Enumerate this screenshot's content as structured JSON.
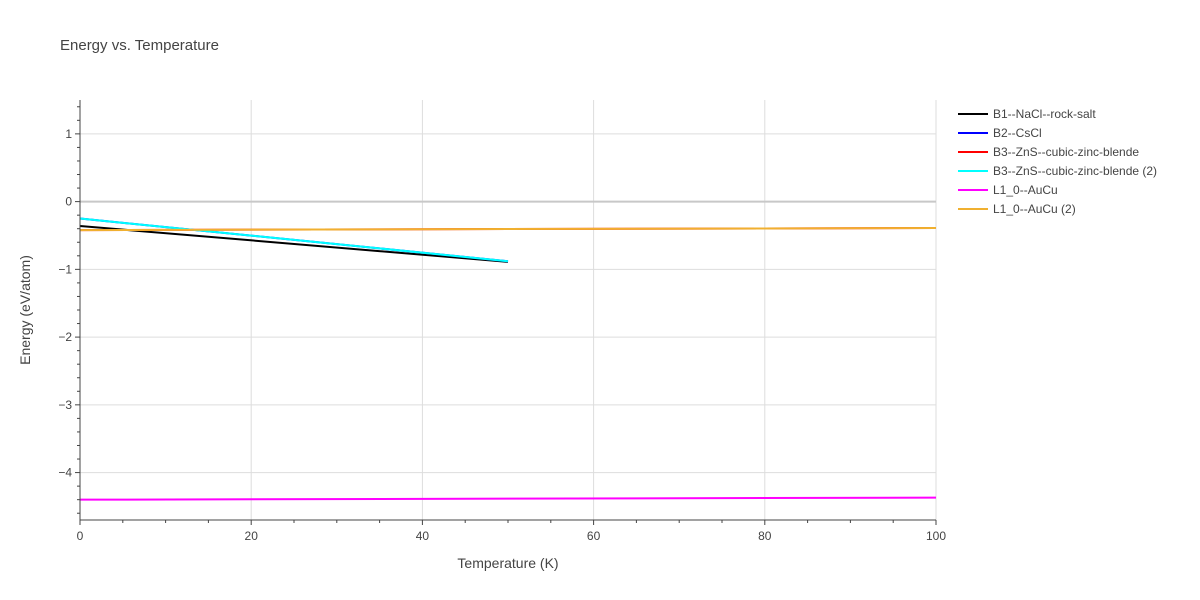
{
  "chart_data": {
    "type": "line",
    "title": "Energy vs. Temperature",
    "xlabel": "Temperature (K)",
    "ylabel": "Energy (eV/atom)",
    "xlim": [
      0,
      100
    ],
    "ylim": [
      -4.7,
      1.5
    ],
    "xticks": [
      0,
      20,
      40,
      60,
      80,
      100
    ],
    "yticks": [
      1,
      0,
      -1,
      -2,
      -3,
      -4
    ],
    "ytick_labels": [
      "1",
      "0",
      "−1",
      "−2",
      "−3",
      "−4"
    ],
    "grid": true,
    "legend_position": "top-right",
    "series": [
      {
        "name": "B1--NaCl--rock-salt",
        "color": "#000000",
        "x": [
          0,
          50
        ],
        "y": [
          -0.36,
          -0.89
        ]
      },
      {
        "name": "B2--CsCl",
        "color": "#0000ff",
        "x": [
          0,
          50
        ],
        "y": [
          -0.25,
          -0.88
        ]
      },
      {
        "name": "B3--ZnS--cubic-zinc-blende",
        "color": "#ff0000",
        "x": [
          0,
          100
        ],
        "y": [
          -0.42,
          -0.39
        ]
      },
      {
        "name": "B3--ZnS--cubic-zinc-blende (2)",
        "color": "#00ffff",
        "x": [
          0,
          50
        ],
        "y": [
          -0.25,
          -0.88
        ]
      },
      {
        "name": "L1_0--AuCu",
        "color": "#ff00ff",
        "x": [
          0,
          100
        ],
        "y": [
          -4.4,
          -4.37
        ]
      },
      {
        "name": "L1_0--AuCu (2)",
        "color": "#f0b030",
        "x": [
          0,
          100
        ],
        "y": [
          -0.42,
          -0.39
        ]
      }
    ]
  }
}
